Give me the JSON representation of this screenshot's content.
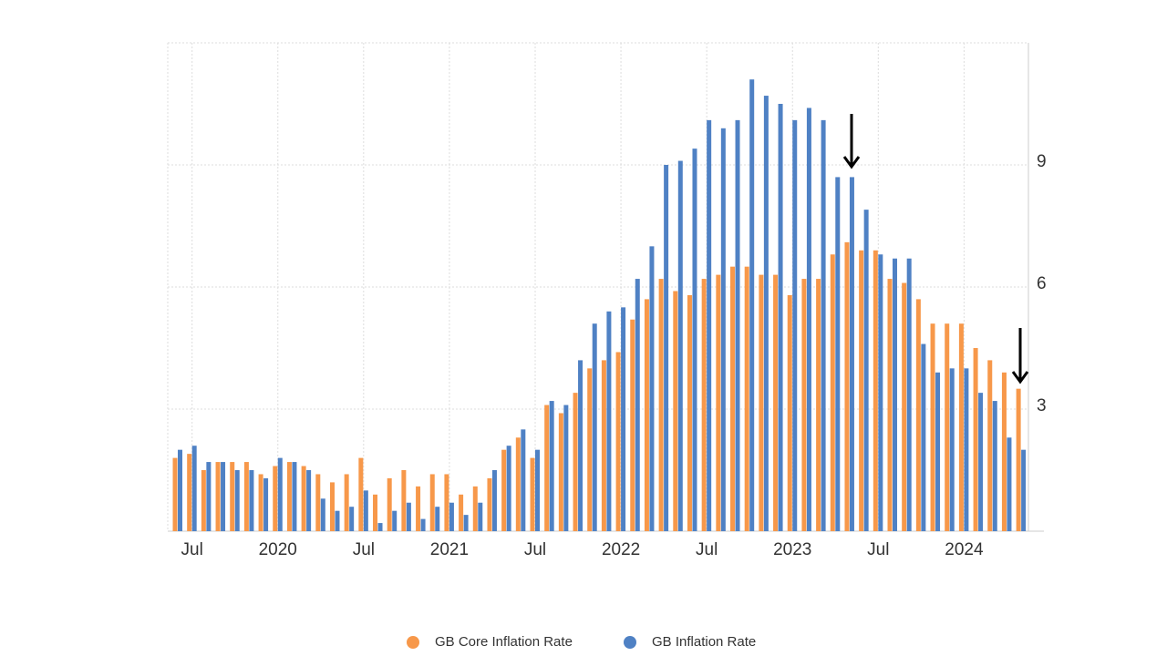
{
  "chart_data": {
    "type": "bar",
    "categories": [
      null,
      "Jul",
      null,
      null,
      null,
      null,
      null,
      "2020",
      null,
      null,
      null,
      null,
      null,
      "Jul",
      null,
      null,
      null,
      null,
      null,
      "2021",
      null,
      null,
      null,
      null,
      null,
      "Jul",
      null,
      null,
      null,
      null,
      null,
      "2022",
      null,
      null,
      null,
      null,
      null,
      "Jul",
      null,
      null,
      null,
      null,
      null,
      "2023",
      null,
      null,
      null,
      null,
      null,
      "Jul",
      null,
      null,
      null,
      null,
      null,
      "2024",
      null,
      null,
      null,
      null
    ],
    "series": [
      {
        "name": "GB Core Inflation Rate",
        "color": "#f7984a",
        "values": [
          1.8,
          1.9,
          1.5,
          1.7,
          1.7,
          1.7,
          1.4,
          1.6,
          1.7,
          1.6,
          1.4,
          1.2,
          1.4,
          1.8,
          0.9,
          1.3,
          1.5,
          1.1,
          1.4,
          1.4,
          0.9,
          1.1,
          1.3,
          2.0,
          2.3,
          1.8,
          3.1,
          2.9,
          3.4,
          4.0,
          4.2,
          4.4,
          5.2,
          5.7,
          6.2,
          5.9,
          5.8,
          6.2,
          6.3,
          6.5,
          6.5,
          6.3,
          6.3,
          5.8,
          6.2,
          6.2,
          6.8,
          7.1,
          6.9,
          6.9,
          6.2,
          6.1,
          5.7,
          5.1,
          5.1,
          5.1,
          4.5,
          4.2,
          3.9,
          3.5
        ]
      },
      {
        "name": "GB Inflation Rate",
        "color": "#4f81c4",
        "values": [
          2.0,
          2.1,
          1.7,
          1.7,
          1.5,
          1.5,
          1.3,
          1.8,
          1.7,
          1.5,
          0.8,
          0.5,
          0.6,
          1.0,
          0.2,
          0.5,
          0.7,
          0.3,
          0.6,
          0.7,
          0.4,
          0.7,
          1.5,
          2.1,
          2.5,
          2.0,
          3.2,
          3.1,
          4.2,
          5.1,
          5.4,
          5.5,
          6.2,
          7.0,
          9.0,
          9.1,
          9.4,
          10.1,
          9.9,
          10.1,
          11.1,
          10.7,
          10.5,
          10.1,
          10.4,
          10.1,
          8.7,
          8.7,
          7.9,
          6.8,
          6.7,
          6.7,
          4.6,
          3.9,
          4.0,
          4.0,
          3.4,
          3.2,
          2.3,
          2.0
        ]
      }
    ],
    "ylim": [
      0,
      12
    ],
    "yticks": [
      3,
      6,
      9
    ],
    "grid": true
  }
}
